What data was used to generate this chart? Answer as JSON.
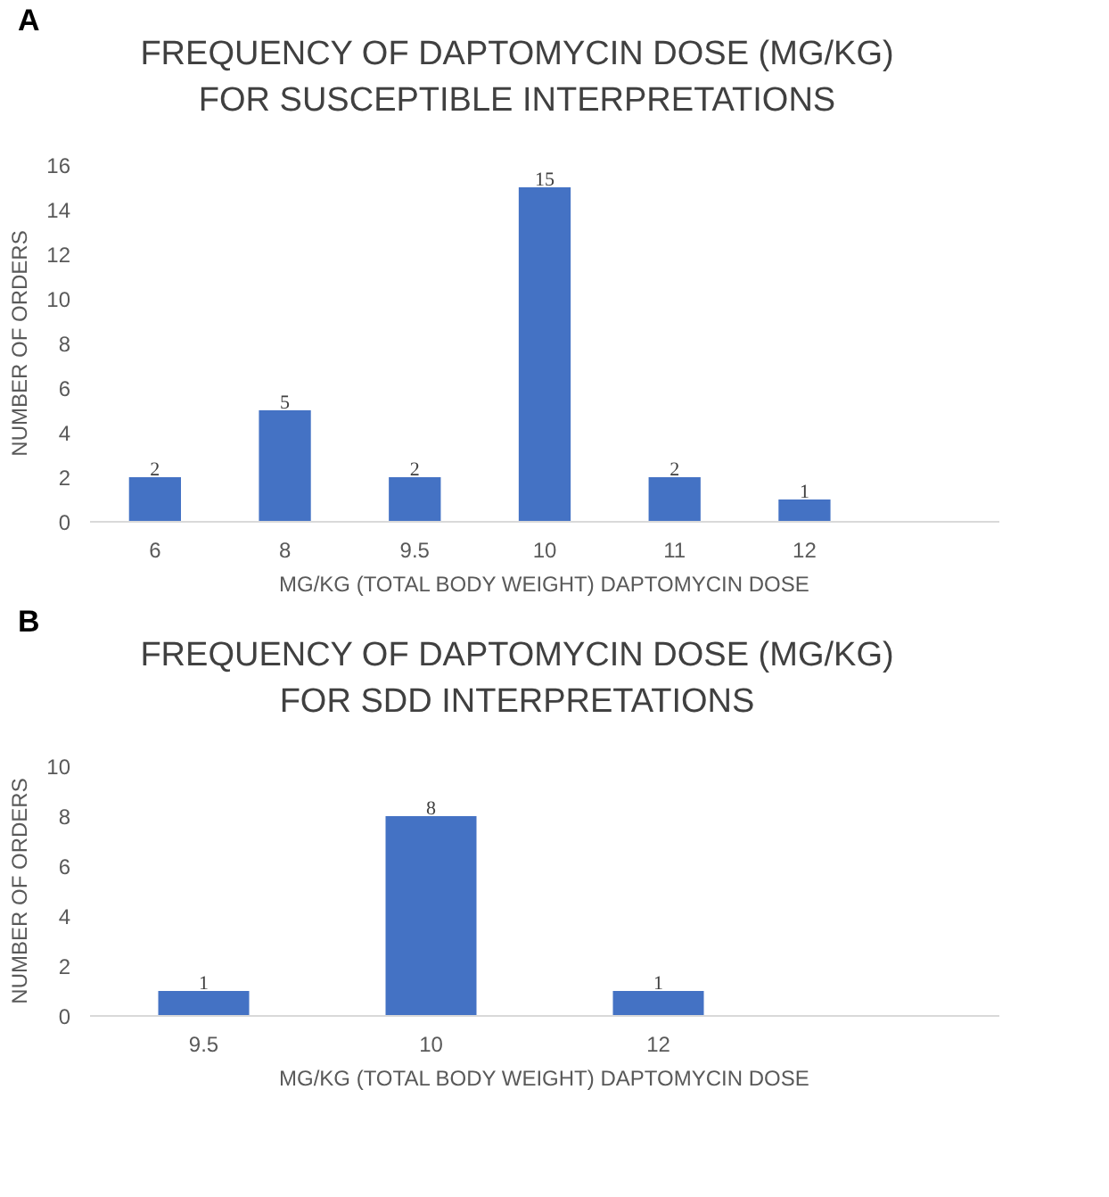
{
  "chart_data": [
    {
      "type": "bar",
      "title": "FREQUENCY OF DAPTOMYCIN DOSE (MG/KG) FOR SUSCEPTIBLE INTERPRETATIONS",
      "annotations": [
        "A"
      ],
      "xlabel": "MG/KG (TOTAL BODY WEIGHT) DAPTOMYCIN DOSE",
      "ylabel": "NUMBER OF ORDERS",
      "categories": [
        "6",
        "8",
        "9.5",
        "10",
        "11",
        "12",
        null
      ],
      "values": [
        2,
        5,
        2,
        15,
        2,
        1,
        null
      ],
      "color": "#4472c4",
      "ylim": [
        0,
        16
      ],
      "yticks": [
        0,
        2,
        4,
        6,
        8,
        10,
        12,
        14,
        16
      ],
      "data_labels": true
    },
    {
      "type": "bar",
      "title": "FREQUENCY OF DAPTOMYCIN DOSE (MG/KG) FOR SDD INTERPRETATIONS",
      "annotations": [
        "B"
      ],
      "xlabel": "MG/KG (TOTAL BODY WEIGHT) DAPTOMYCIN DOSE",
      "ylabel": "NUMBER OF ORDERS",
      "categories": [
        "9.5",
        "10",
        "12",
        null
      ],
      "values": [
        1,
        8,
        1,
        null
      ],
      "color": "#4472c4",
      "ylim": [
        0,
        10
      ],
      "yticks": [
        0,
        2,
        4,
        6,
        8,
        10
      ],
      "data_labels": true
    }
  ]
}
